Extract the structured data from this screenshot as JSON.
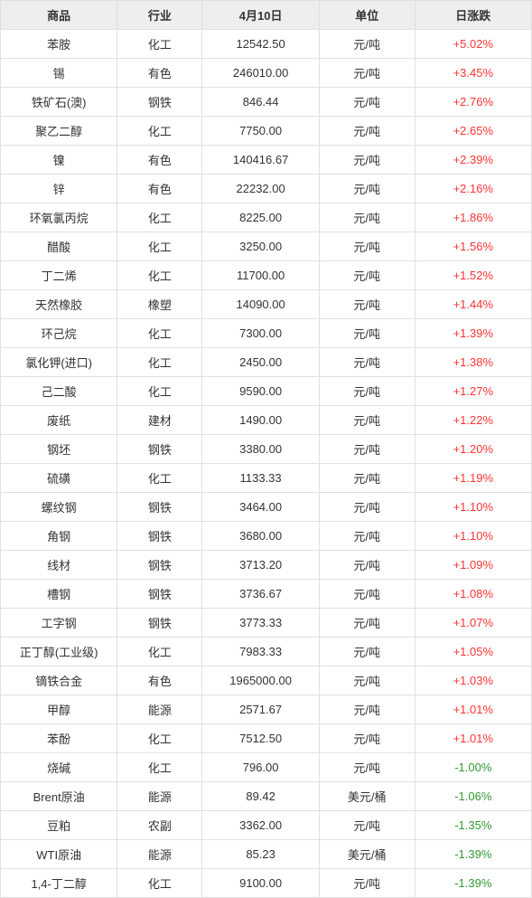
{
  "table": {
    "headers": {
      "product": "商品",
      "industry": "行业",
      "date": "4月10日",
      "unit": "单位",
      "change": "日涨跌"
    },
    "rows": [
      {
        "product": "苯胺",
        "industry": "化工",
        "price": "12542.50",
        "unit": "元/吨",
        "change": "+5.02%",
        "dir": "pos"
      },
      {
        "product": "锡",
        "industry": "有色",
        "price": "246010.00",
        "unit": "元/吨",
        "change": "+3.45%",
        "dir": "pos"
      },
      {
        "product": "铁矿石(澳)",
        "industry": "钢铁",
        "price": "846.44",
        "unit": "元/吨",
        "change": "+2.76%",
        "dir": "pos"
      },
      {
        "product": "聚乙二醇",
        "industry": "化工",
        "price": "7750.00",
        "unit": "元/吨",
        "change": "+2.65%",
        "dir": "pos"
      },
      {
        "product": "镍",
        "industry": "有色",
        "price": "140416.67",
        "unit": "元/吨",
        "change": "+2.39%",
        "dir": "pos"
      },
      {
        "product": "锌",
        "industry": "有色",
        "price": "22232.00",
        "unit": "元/吨",
        "change": "+2.16%",
        "dir": "pos"
      },
      {
        "product": "环氧氯丙烷",
        "industry": "化工",
        "price": "8225.00",
        "unit": "元/吨",
        "change": "+1.86%",
        "dir": "pos"
      },
      {
        "product": "醋酸",
        "industry": "化工",
        "price": "3250.00",
        "unit": "元/吨",
        "change": "+1.56%",
        "dir": "pos"
      },
      {
        "product": "丁二烯",
        "industry": "化工",
        "price": "11700.00",
        "unit": "元/吨",
        "change": "+1.52%",
        "dir": "pos"
      },
      {
        "product": "天然橡胶",
        "industry": "橡塑",
        "price": "14090.00",
        "unit": "元/吨",
        "change": "+1.44%",
        "dir": "pos"
      },
      {
        "product": "环己烷",
        "industry": "化工",
        "price": "7300.00",
        "unit": "元/吨",
        "change": "+1.39%",
        "dir": "pos"
      },
      {
        "product": "氯化钾(进口)",
        "industry": "化工",
        "price": "2450.00",
        "unit": "元/吨",
        "change": "+1.38%",
        "dir": "pos"
      },
      {
        "product": "己二酸",
        "industry": "化工",
        "price": "9590.00",
        "unit": "元/吨",
        "change": "+1.27%",
        "dir": "pos"
      },
      {
        "product": "废纸",
        "industry": "建材",
        "price": "1490.00",
        "unit": "元/吨",
        "change": "+1.22%",
        "dir": "pos"
      },
      {
        "product": "钢坯",
        "industry": "钢铁",
        "price": "3380.00",
        "unit": "元/吨",
        "change": "+1.20%",
        "dir": "pos"
      },
      {
        "product": "硫磺",
        "industry": "化工",
        "price": "1133.33",
        "unit": "元/吨",
        "change": "+1.19%",
        "dir": "pos"
      },
      {
        "product": "螺纹钢",
        "industry": "钢铁",
        "price": "3464.00",
        "unit": "元/吨",
        "change": "+1.10%",
        "dir": "pos"
      },
      {
        "product": "角钢",
        "industry": "钢铁",
        "price": "3680.00",
        "unit": "元/吨",
        "change": "+1.10%",
        "dir": "pos"
      },
      {
        "product": "线材",
        "industry": "钢铁",
        "price": "3713.20",
        "unit": "元/吨",
        "change": "+1.09%",
        "dir": "pos"
      },
      {
        "product": "槽钢",
        "industry": "钢铁",
        "price": "3736.67",
        "unit": "元/吨",
        "change": "+1.08%",
        "dir": "pos"
      },
      {
        "product": "工字钢",
        "industry": "钢铁",
        "price": "3773.33",
        "unit": "元/吨",
        "change": "+1.07%",
        "dir": "pos"
      },
      {
        "product": "正丁醇(工业级)",
        "industry": "化工",
        "price": "7983.33",
        "unit": "元/吨",
        "change": "+1.05%",
        "dir": "pos"
      },
      {
        "product": "镝铁合金",
        "industry": "有色",
        "price": "1965000.00",
        "unit": "元/吨",
        "change": "+1.03%",
        "dir": "pos"
      },
      {
        "product": "甲醇",
        "industry": "能源",
        "price": "2571.67",
        "unit": "元/吨",
        "change": "+1.01%",
        "dir": "pos"
      },
      {
        "product": "苯酚",
        "industry": "化工",
        "price": "7512.50",
        "unit": "元/吨",
        "change": "+1.01%",
        "dir": "pos"
      },
      {
        "product": "烧碱",
        "industry": "化工",
        "price": "796.00",
        "unit": "元/吨",
        "change": "-1.00%",
        "dir": "neg"
      },
      {
        "product": "Brent原油",
        "industry": "能源",
        "price": "89.42",
        "unit": "美元/桶",
        "change": "-1.06%",
        "dir": "neg"
      },
      {
        "product": "豆粕",
        "industry": "农副",
        "price": "3362.00",
        "unit": "元/吨",
        "change": "-1.35%",
        "dir": "neg"
      },
      {
        "product": "WTI原油",
        "industry": "能源",
        "price": "85.23",
        "unit": "美元/桶",
        "change": "-1.39%",
        "dir": "neg"
      },
      {
        "product": "1,4-丁二醇",
        "industry": "化工",
        "price": "9100.00",
        "unit": "元/吨",
        "change": "-1.39%",
        "dir": "neg"
      }
    ]
  },
  "colors": {
    "header_bg": "#eeeeee",
    "border": "#e0e0e0",
    "text": "#333333",
    "positive": "#ff3333",
    "negative": "#339933",
    "background": "#ffffff"
  }
}
